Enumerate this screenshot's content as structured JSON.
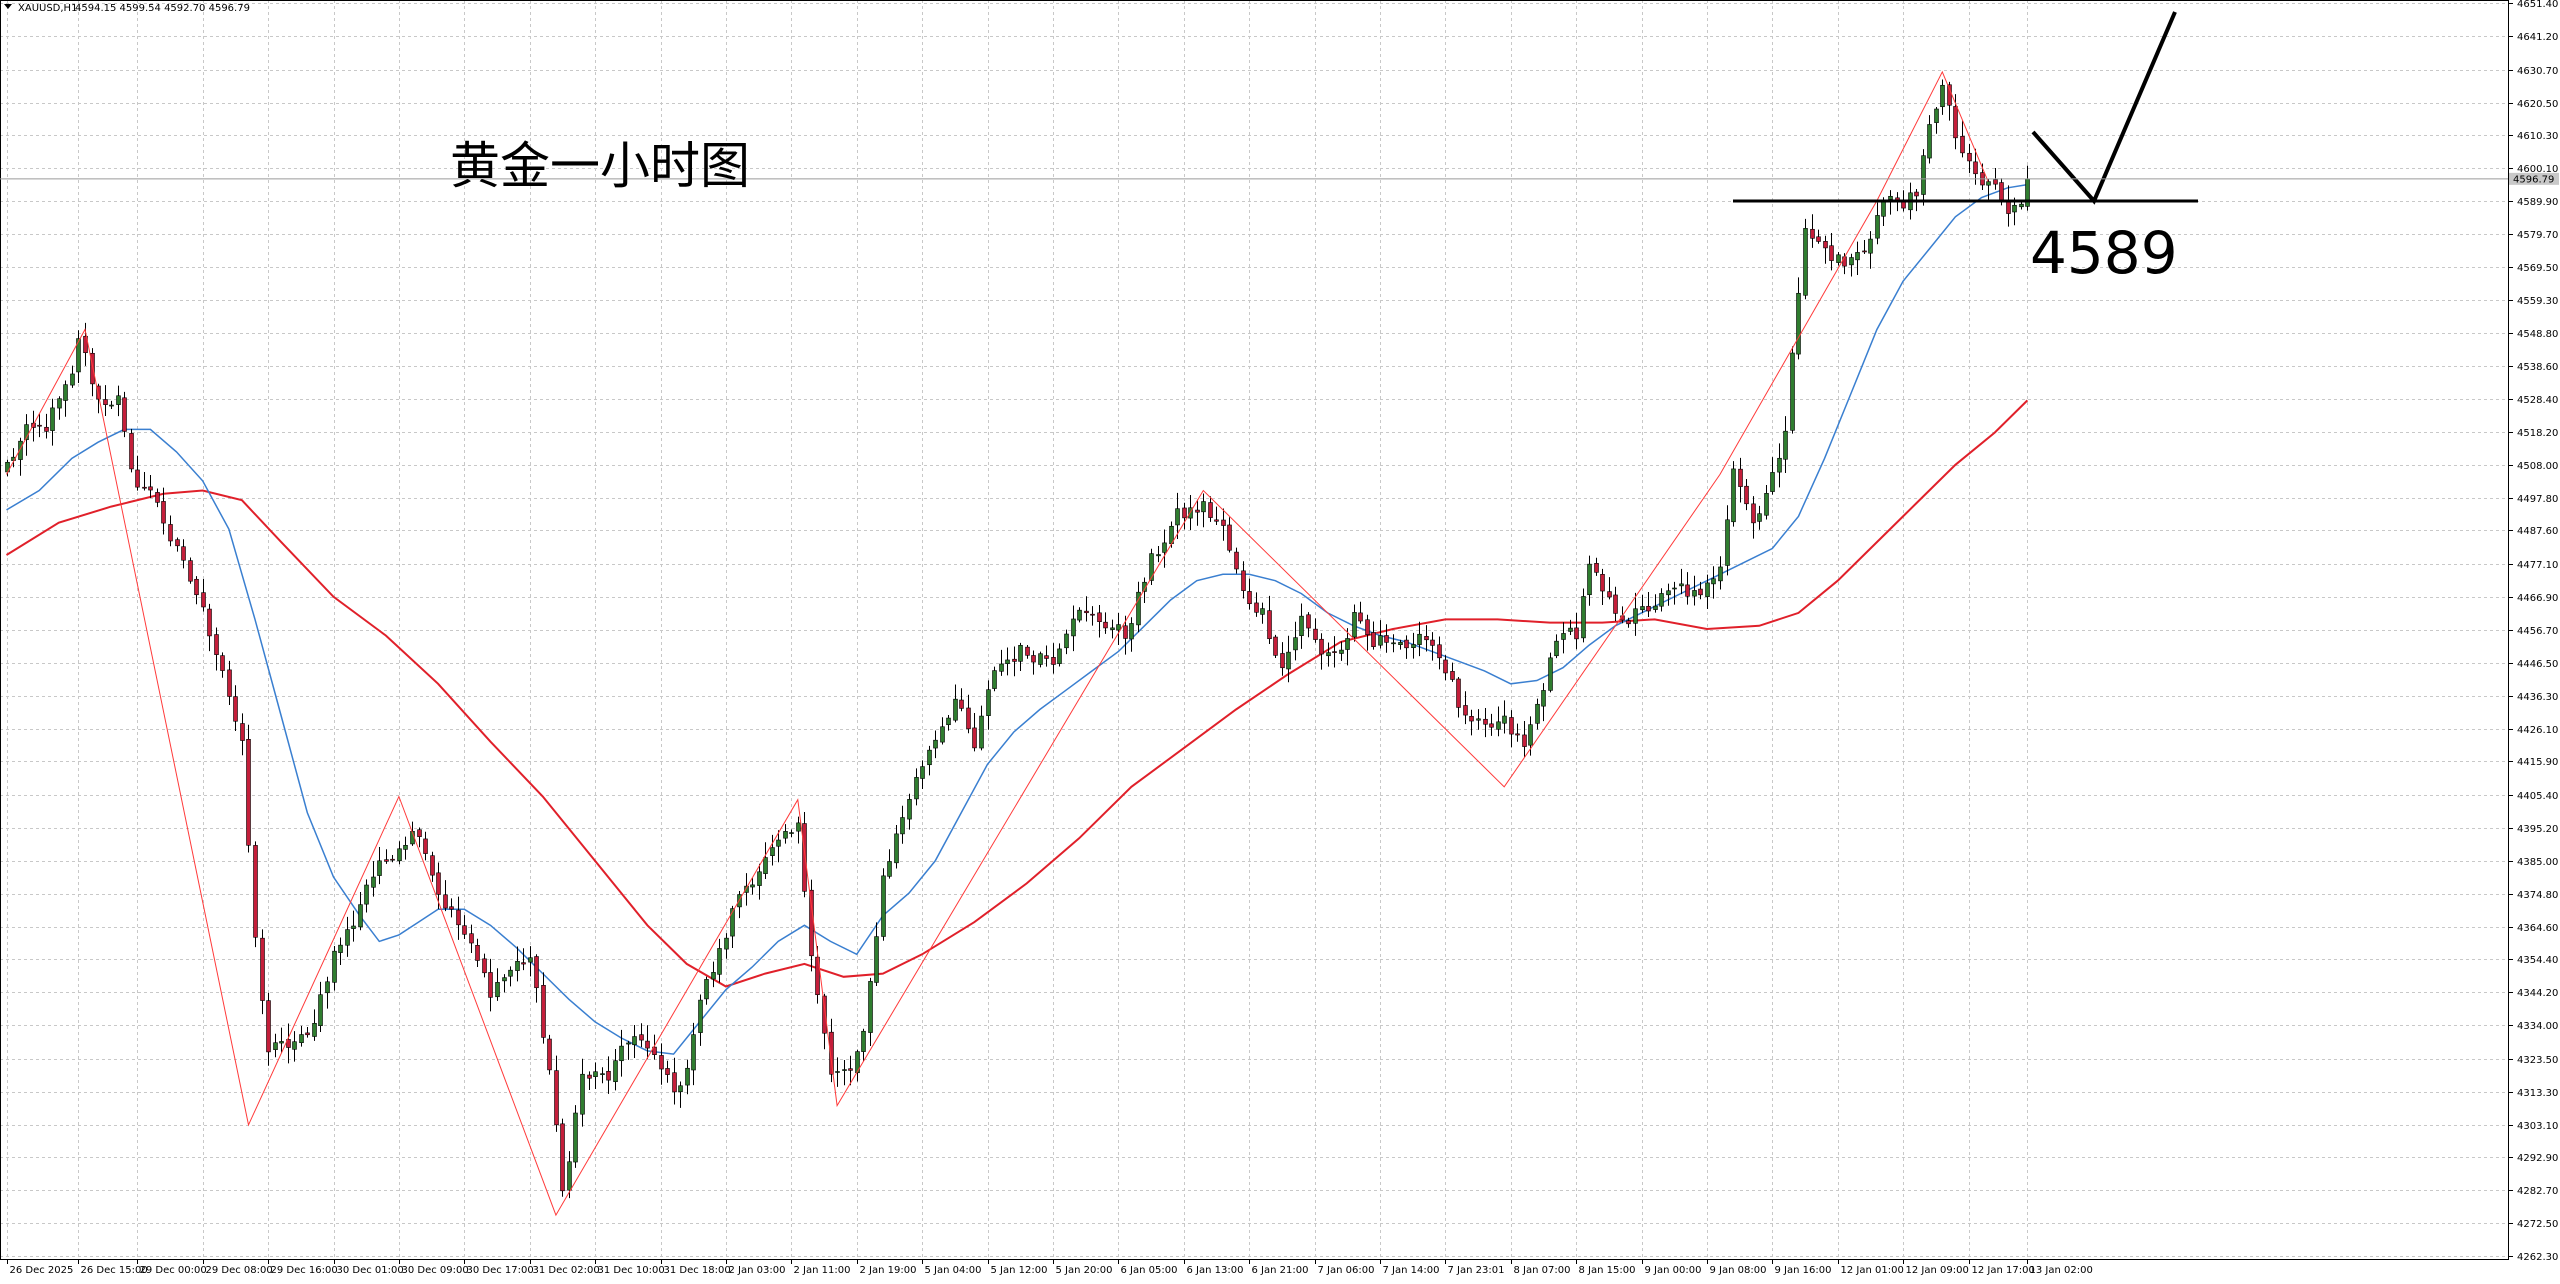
{
  "header": {
    "symbol": "XAUUSD,H1",
    "ohlc": "4594.15 4599.54 4592.70 4596.79"
  },
  "annotations": {
    "title": "黄金一小时图",
    "level_label": "4589",
    "level_value": 4589.9,
    "current_price_label": "4596.79"
  },
  "colors": {
    "bull_body": "#2f7d2f",
    "bear_body": "#c41e3a",
    "wick": "#000000",
    "ma_fast": "#3a7fd0",
    "ma_slow": "#e0202a",
    "zigzag": "#ff3a3a",
    "grid": "#c8c8c8",
    "price_badge": "#c8c8c8"
  },
  "chart_data": {
    "type": "candlestick",
    "ylim": [
      4262.3,
      4651.4
    ],
    "y_ticks": [
      "4651.40",
      "4641.20",
      "4630.70",
      "4620.50",
      "4610.30",
      "4600.10",
      "4589.90",
      "4579.70",
      "4569.50",
      "4559.30",
      "4548.80",
      "4538.60",
      "4528.40",
      "4518.20",
      "4508.00",
      "4497.80",
      "4487.60",
      "4477.10",
      "4466.90",
      "4456.70",
      "4446.50",
      "4436.30",
      "4426.10",
      "4415.90",
      "4405.40",
      "4395.20",
      "4385.00",
      "4374.80",
      "4364.60",
      "4354.40",
      "4344.20",
      "4334.00",
      "4323.50",
      "4313.30",
      "4303.10",
      "4292.90",
      "4282.70",
      "4272.50",
      "4262.30"
    ],
    "x_ticks": [
      {
        "label": "26 Dec 2025",
        "i": 0
      },
      {
        "label": "26 Dec 15:00",
        "i": 11
      },
      {
        "label": "29 Dec 00:00",
        "i": 20
      },
      {
        "label": "29 Dec 08:00",
        "i": 30
      },
      {
        "label": "29 Dec 16:00",
        "i": 40
      },
      {
        "label": "30 Dec 01:00",
        "i": 50
      },
      {
        "label": "30 Dec 09:00",
        "i": 60
      },
      {
        "label": "30 Dec 17:00",
        "i": 70
      },
      {
        "label": "31 Dec 02:00",
        "i": 80
      },
      {
        "label": "31 Dec 10:00",
        "i": 90
      },
      {
        "label": "31 Dec 18:00",
        "i": 100
      },
      {
        "label": "2 Jan 03:00",
        "i": 110
      },
      {
        "label": "2 Jan 11:00",
        "i": 120
      },
      {
        "label": "2 Jan 19:00",
        "i": 130
      },
      {
        "label": "5 Jan 04:00",
        "i": 140
      },
      {
        "label": "5 Jan 12:00",
        "i": 150
      },
      {
        "label": "5 Jan 20:00",
        "i": 160
      },
      {
        "label": "6 Jan 05:00",
        "i": 170
      },
      {
        "label": "6 Jan 13:00",
        "i": 180
      },
      {
        "label": "6 Jan 21:00",
        "i": 190
      },
      {
        "label": "7 Jan 06:00",
        "i": 200
      },
      {
        "label": "7 Jan 14:00",
        "i": 210
      },
      {
        "label": "7 Jan 23:01",
        "i": 220
      },
      {
        "label": "8 Jan 07:00",
        "i": 230
      },
      {
        "label": "8 Jan 15:00",
        "i": 240
      },
      {
        "label": "9 Jan 00:00",
        "i": 250
      },
      {
        "label": "9 Jan 08:00",
        "i": 260
      },
      {
        "label": "9 Jan 16:00",
        "i": 270
      },
      {
        "label": "12 Jan 01:00",
        "i": 280
      },
      {
        "label": "12 Jan 09:00",
        "i": 290
      },
      {
        "label": "12 Jan 17:00",
        "i": 300
      },
      {
        "label": "13 Jan 02:00",
        "i": 309
      }
    ],
    "anchors": [
      [
        0,
        4508
      ],
      [
        3,
        4518
      ],
      [
        6,
        4520
      ],
      [
        10,
        4535
      ],
      [
        11,
        4548
      ],
      [
        14,
        4528
      ],
      [
        17,
        4528
      ],
      [
        19,
        4505
      ],
      [
        23,
        4497
      ],
      [
        25,
        4485
      ],
      [
        29,
        4468
      ],
      [
        33,
        4445
      ],
      [
        36,
        4420
      ],
      [
        38,
        4360
      ],
      [
        40,
        4326
      ],
      [
        46,
        4330
      ],
      [
        50,
        4356
      ],
      [
        53,
        4366
      ],
      [
        55,
        4378
      ],
      [
        60,
        4390
      ],
      [
        63,
        4395
      ],
      [
        66,
        4375
      ],
      [
        70,
        4362
      ],
      [
        74,
        4345
      ],
      [
        78,
        4353
      ],
      [
        80,
        4355
      ],
      [
        83,
        4320
      ],
      [
        85,
        4282
      ],
      [
        88,
        4318
      ],
      [
        92,
        4318
      ],
      [
        96,
        4332
      ],
      [
        100,
        4320
      ],
      [
        103,
        4313
      ],
      [
        106,
        4342
      ],
      [
        109,
        4356
      ],
      [
        112,
        4375
      ],
      [
        118,
        4390
      ],
      [
        121,
        4395
      ],
      [
        123,
        4358
      ],
      [
        126,
        4318
      ],
      [
        129,
        4320
      ],
      [
        131,
        4330
      ],
      [
        134,
        4380
      ],
      [
        138,
        4405
      ],
      [
        141,
        4420
      ],
      [
        145,
        4435
      ],
      [
        148,
        4420
      ],
      [
        151,
        4445
      ],
      [
        155,
        4450
      ],
      [
        160,
        4448
      ],
      [
        163,
        4462
      ],
      [
        167,
        4460
      ],
      [
        171,
        4455
      ],
      [
        175,
        4478
      ],
      [
        179,
        4492
      ],
      [
        183,
        4495
      ],
      [
        186,
        4488
      ],
      [
        189,
        4468
      ],
      [
        192,
        4462
      ],
      [
        195,
        4445
      ],
      [
        198,
        4460
      ],
      [
        201,
        4450
      ],
      [
        204,
        4450
      ],
      [
        206,
        4460
      ],
      [
        209,
        4452
      ],
      [
        212,
        4455
      ],
      [
        215,
        4450
      ],
      [
        217,
        4456
      ],
      [
        220,
        4445
      ],
      [
        223,
        4428
      ],
      [
        226,
        4426
      ],
      [
        229,
        4428
      ],
      [
        232,
        4420
      ],
      [
        235,
        4440
      ],
      [
        238,
        4458
      ],
      [
        240,
        4455
      ],
      [
        242,
        4476
      ],
      [
        245,
        4465
      ],
      [
        248,
        4460
      ],
      [
        252,
        4465
      ],
      [
        256,
        4470
      ],
      [
        259,
        4466
      ],
      [
        262,
        4478
      ],
      [
        264,
        4508
      ],
      [
        267,
        4490
      ],
      [
        270,
        4505
      ],
      [
        271,
        4508
      ],
      [
        272,
        4520
      ],
      [
        273,
        4545
      ],
      [
        275,
        4580
      ],
      [
        278,
        4575
      ],
      [
        281,
        4570
      ],
      [
        284,
        4575
      ],
      [
        287,
        4590
      ],
      [
        290,
        4590
      ],
      [
        292,
        4590
      ],
      [
        294,
        4615
      ],
      [
        296,
        4625
      ],
      [
        298,
        4610
      ],
      [
        300,
        4600
      ],
      [
        302,
        4595
      ],
      [
        304,
        4595
      ],
      [
        306,
        4585
      ],
      [
        308,
        4590
      ],
      [
        309,
        4596.79
      ]
    ],
    "ma_fast_points": [
      [
        0,
        4494
      ],
      [
        5,
        4500
      ],
      [
        10,
        4510
      ],
      [
        14,
        4515
      ],
      [
        18,
        4519
      ],
      [
        22,
        4519
      ],
      [
        26,
        4512
      ],
      [
        30,
        4503
      ],
      [
        34,
        4488
      ],
      [
        38,
        4460
      ],
      [
        42,
        4430
      ],
      [
        46,
        4400
      ],
      [
        50,
        4380
      ],
      [
        54,
        4368
      ],
      [
        57,
        4360
      ],
      [
        60,
        4362
      ],
      [
        63,
        4366
      ],
      [
        66,
        4370
      ],
      [
        70,
        4370
      ],
      [
        74,
        4365
      ],
      [
        78,
        4358
      ],
      [
        82,
        4350
      ],
      [
        86,
        4342
      ],
      [
        90,
        4335
      ],
      [
        94,
        4330
      ],
      [
        98,
        4326
      ],
      [
        102,
        4325
      ],
      [
        106,
        4335
      ],
      [
        110,
        4345
      ],
      [
        114,
        4352
      ],
      [
        118,
        4360
      ],
      [
        122,
        4365
      ],
      [
        126,
        4360
      ],
      [
        130,
        4356
      ],
      [
        134,
        4368
      ],
      [
        138,
        4375
      ],
      [
        142,
        4385
      ],
      [
        146,
        4400
      ],
      [
        150,
        4415
      ],
      [
        154,
        4425
      ],
      [
        158,
        4432
      ],
      [
        162,
        4438
      ],
      [
        166,
        4444
      ],
      [
        170,
        4450
      ],
      [
        174,
        4458
      ],
      [
        178,
        4466
      ],
      [
        182,
        4472
      ],
      [
        186,
        4474
      ],
      [
        190,
        4474
      ],
      [
        194,
        4472
      ],
      [
        198,
        4468
      ],
      [
        202,
        4462
      ],
      [
        206,
        4458
      ],
      [
        210,
        4455
      ],
      [
        214,
        4453
      ],
      [
        218,
        4450
      ],
      [
        222,
        4447
      ],
      [
        226,
        4444
      ],
      [
        230,
        4440
      ],
      [
        234,
        4441
      ],
      [
        238,
        4445
      ],
      [
        242,
        4452
      ],
      [
        246,
        4458
      ],
      [
        250,
        4462
      ],
      [
        254,
        4466
      ],
      [
        258,
        4470
      ],
      [
        262,
        4474
      ],
      [
        266,
        4478
      ],
      [
        270,
        4482
      ],
      [
        274,
        4492
      ],
      [
        278,
        4510
      ],
      [
        282,
        4530
      ],
      [
        286,
        4550
      ],
      [
        290,
        4565
      ],
      [
        294,
        4575
      ],
      [
        298,
        4585
      ],
      [
        302,
        4591
      ],
      [
        306,
        4594
      ],
      [
        309,
        4595
      ]
    ],
    "ma_slow_points": [
      [
        0,
        4480
      ],
      [
        8,
        4490
      ],
      [
        16,
        4495
      ],
      [
        24,
        4499
      ],
      [
        30,
        4500
      ],
      [
        36,
        4497
      ],
      [
        42,
        4484
      ],
      [
        50,
        4467
      ],
      [
        58,
        4455
      ],
      [
        66,
        4440
      ],
      [
        74,
        4422
      ],
      [
        82,
        4405
      ],
      [
        90,
        4385
      ],
      [
        98,
        4365
      ],
      [
        104,
        4353
      ],
      [
        110,
        4346
      ],
      [
        116,
        4350
      ],
      [
        122,
        4353
      ],
      [
        128,
        4349
      ],
      [
        134,
        4350
      ],
      [
        140,
        4356
      ],
      [
        148,
        4366
      ],
      [
        156,
        4378
      ],
      [
        164,
        4392
      ],
      [
        172,
        4408
      ],
      [
        180,
        4420
      ],
      [
        188,
        4432
      ],
      [
        196,
        4443
      ],
      [
        204,
        4453
      ],
      [
        212,
        4457
      ],
      [
        220,
        4460
      ],
      [
        228,
        4460
      ],
      [
        236,
        4459
      ],
      [
        244,
        4459
      ],
      [
        252,
        4460
      ],
      [
        260,
        4457
      ],
      [
        268,
        4458
      ],
      [
        274,
        4462
      ],
      [
        280,
        4472
      ],
      [
        286,
        4484
      ],
      [
        292,
        4496
      ],
      [
        298,
        4508
      ],
      [
        304,
        4518
      ],
      [
        309,
        4528
      ]
    ],
    "zigzag": [
      [
        0,
        4505
      ],
      [
        12,
        4550
      ],
      [
        37,
        4303
      ],
      [
        60,
        4405
      ],
      [
        84,
        4275
      ],
      [
        121,
        4404
      ],
      [
        127,
        4309
      ],
      [
        183,
        4500
      ],
      [
        229,
        4408
      ],
      [
        262,
        4505
      ],
      [
        286,
        4590
      ],
      [
        296,
        4630
      ],
      [
        303,
        4596
      ]
    ]
  }
}
